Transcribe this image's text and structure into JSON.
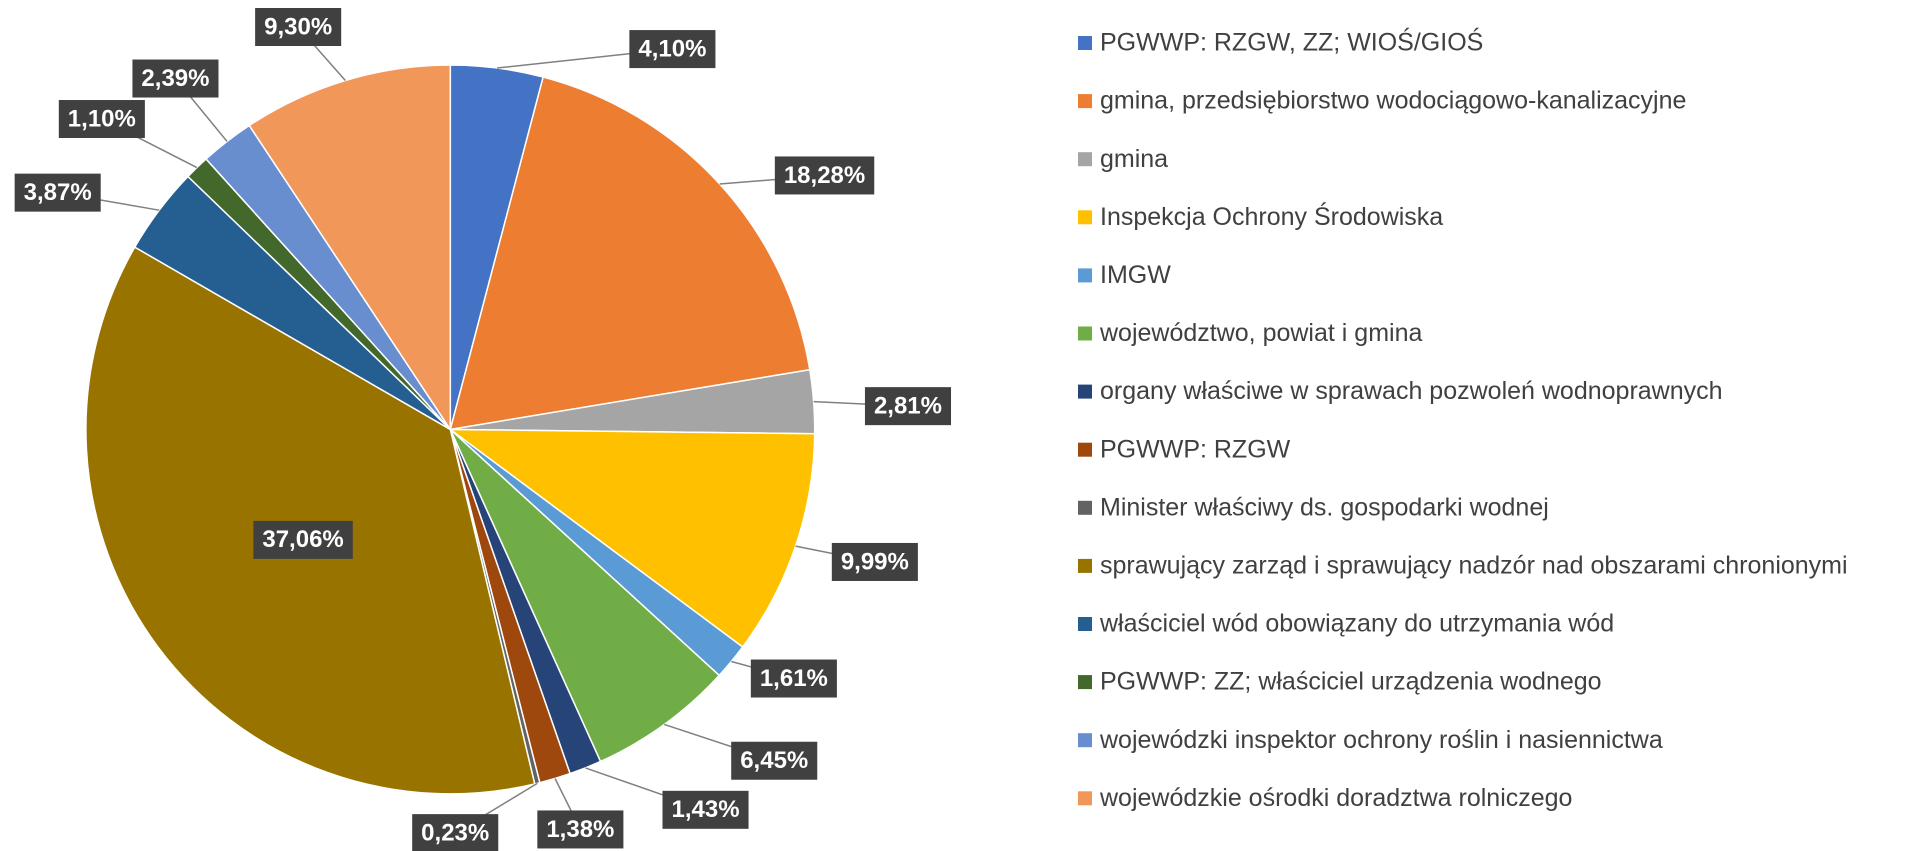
{
  "chart_data": {
    "type": "pie",
    "categories": [
      "PGWWP: RZGW, ZZ; WIOŚ/GIOŚ",
      "gmina, przedsiębiorstwo wodociągowo-kanalizacyjne",
      "gmina",
      "Inspekcja Ochrony Środowiska",
      "IMGW",
      "województwo, powiat i gmina",
      "organy właściwe w sprawach pozwoleń wodnoprawnych",
      "PGWWP: RZGW",
      "Minister właściwy ds. gospodarki wodnej",
      "sprawujący zarząd i sprawujący nadzór nad obszarami chronionymi",
      "właściciel wód obowiązany do utrzymania wód",
      "PGWWP: ZZ; właściciel urządzenia wodnego",
      "wojewódzki inspektor ochrony roślin i nasiennictwa",
      "wojewódzkie ośrodki doradztwa rolniczego"
    ],
    "values": [
      4.1,
      18.28,
      2.81,
      9.99,
      1.61,
      6.45,
      1.43,
      1.38,
      0.23,
      37.06,
      3.87,
      1.1,
      2.39,
      9.3
    ],
    "value_labels": [
      "4,10%",
      "18,28%",
      "2,81%",
      "9,99%",
      "1,61%",
      "6,45%",
      "1,43%",
      "1,38%",
      "0,23%",
      "37,06%",
      "3,87%",
      "1,10%",
      "2,39%",
      "9,30%"
    ],
    "colors": [
      "#4472C4",
      "#ED7D31",
      "#A5A5A5",
      "#FFC000",
      "#5B9BD5",
      "#70AD47",
      "#264478",
      "#9E480E",
      "#636363",
      "#997300",
      "#255E91",
      "#43682B",
      "#698ED0",
      "#F1975A"
    ],
    "legend": "right"
  }
}
